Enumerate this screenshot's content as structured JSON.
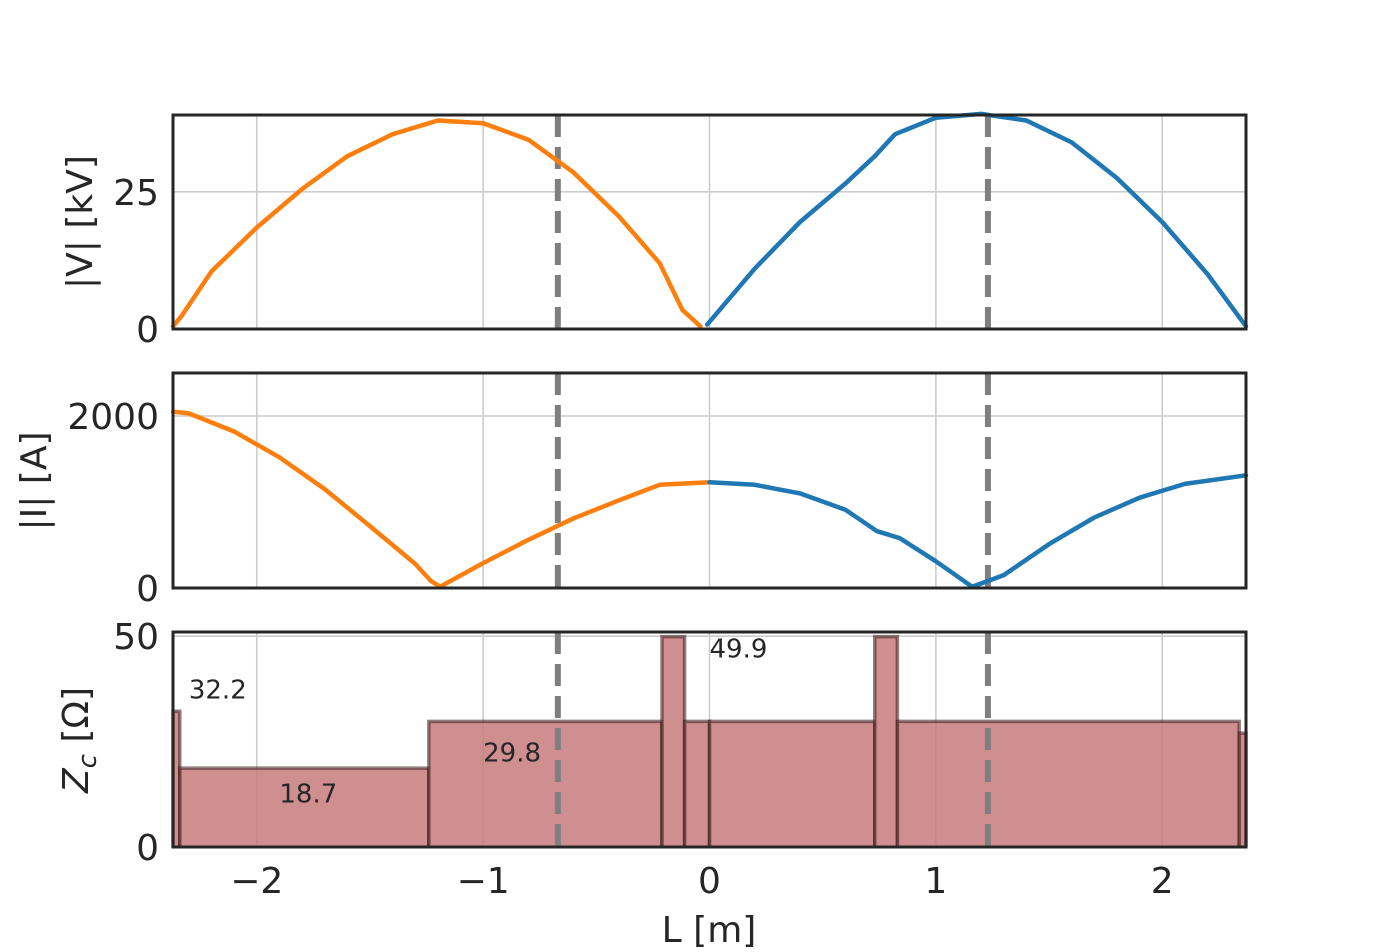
{
  "chart_data": [
    {
      "type": "line",
      "ylabel": "|V| [kV]",
      "xlim": [
        -2.37,
        2.37
      ],
      "ylim": [
        0,
        39
      ],
      "yticks": [
        "0",
        "25"
      ],
      "ytick_values": [
        0,
        25
      ],
      "vlines": [
        -0.67,
        1.23
      ],
      "series": [
        {
          "color": "#ff7f0e",
          "x": [
            -2.37,
            -2.33,
            -2.2,
            -2.0,
            -1.8,
            -1.6,
            -1.4,
            -1.2,
            -1.0,
            -0.8,
            -0.6,
            -0.4,
            -0.22,
            -0.12,
            -0.04
          ],
          "y": [
            0.5,
            2.5,
            10.5,
            18.5,
            25.5,
            31.5,
            35.5,
            38.0,
            37.5,
            34.5,
            28.5,
            20.5,
            12.0,
            3.5,
            0.5
          ]
        },
        {
          "color": "#1f77b4",
          "x": [
            -0.01,
            0.2,
            0.4,
            0.6,
            0.73,
            0.82,
            1.0,
            1.2,
            1.4,
            1.6,
            1.8,
            2.0,
            2.2,
            2.37
          ],
          "y": [
            0.8,
            11.0,
            19.5,
            26.5,
            31.5,
            35.5,
            38.5,
            39.2,
            38.0,
            34.0,
            27.5,
            19.5,
            10.0,
            0.5
          ]
        }
      ]
    },
    {
      "type": "line",
      "ylabel": "|I| [A]",
      "xlim": [
        -2.37,
        2.37
      ],
      "ylim": [
        0,
        2500
      ],
      "yticks": [
        "0",
        "2000"
      ],
      "ytick_values": [
        0,
        2000
      ],
      "vlines": [
        -0.67,
        1.23
      ],
      "series": [
        {
          "color": "#ff7f0e",
          "x": [
            -2.37,
            -2.3,
            -2.1,
            -1.9,
            -1.7,
            -1.5,
            -1.3,
            -1.23,
            -1.19,
            -1.0,
            -0.8,
            -0.6,
            -0.4,
            -0.22,
            0.0
          ],
          "y": [
            2050,
            2030,
            1820,
            1520,
            1150,
            720,
            280,
            80,
            15,
            290,
            560,
            810,
            1020,
            1200,
            1230
          ]
        },
        {
          "color": "#1f77b4",
          "x": [
            0.0,
            0.2,
            0.4,
            0.6,
            0.74,
            0.84,
            1.0,
            1.16,
            1.3,
            1.5,
            1.7,
            1.9,
            2.1,
            2.37
          ],
          "y": [
            1230,
            1200,
            1100,
            910,
            660,
            580,
            310,
            15,
            150,
            510,
            820,
            1050,
            1210,
            1310
          ]
        }
      ]
    },
    {
      "type": "bar",
      "ylabel": "Z_c [Ω]",
      "xlabel": "L [m]",
      "xlim": [
        -2.37,
        2.37
      ],
      "ylim": [
        0,
        51
      ],
      "yticks": [
        "0",
        "50"
      ],
      "ytick_values": [
        0,
        50
      ],
      "xticks": [
        "−2",
        "−1",
        "0",
        "1",
        "2"
      ],
      "xtick_values": [
        -2,
        -1,
        0,
        1,
        2
      ],
      "vlines": [
        -0.67,
        1.23
      ],
      "fill_color": "#c77a7c",
      "edge_color": "#3a1a1a",
      "segments": [
        {
          "x0": -2.37,
          "x1": -2.34,
          "value": 32.2
        },
        {
          "x0": -2.34,
          "x1": -1.24,
          "value": 18.7
        },
        {
          "x0": -1.24,
          "x1": -0.21,
          "value": 29.8
        },
        {
          "x0": -0.21,
          "x1": -0.11,
          "value": 49.9
        },
        {
          "x0": -0.11,
          "x1": 0.0,
          "value": 29.8
        },
        {
          "x0": 0.0,
          "x1": 0.73,
          "value": 29.8
        },
        {
          "x0": 0.73,
          "x1": 0.83,
          "value": 49.9
        },
        {
          "x0": 0.83,
          "x1": 2.34,
          "value": 29.8
        },
        {
          "x0": 2.34,
          "x1": 2.37,
          "value": 27.0
        }
      ],
      "annotations": [
        {
          "text": "32.2",
          "x": -2.3,
          "y": 35.2
        },
        {
          "text": "18.7",
          "x": -1.9,
          "y": 10.6
        },
        {
          "text": "29.8",
          "x": -1.0,
          "y": 20.3
        },
        {
          "text": "49.9",
          "x": 0.0,
          "y": 44.9
        }
      ]
    }
  ]
}
